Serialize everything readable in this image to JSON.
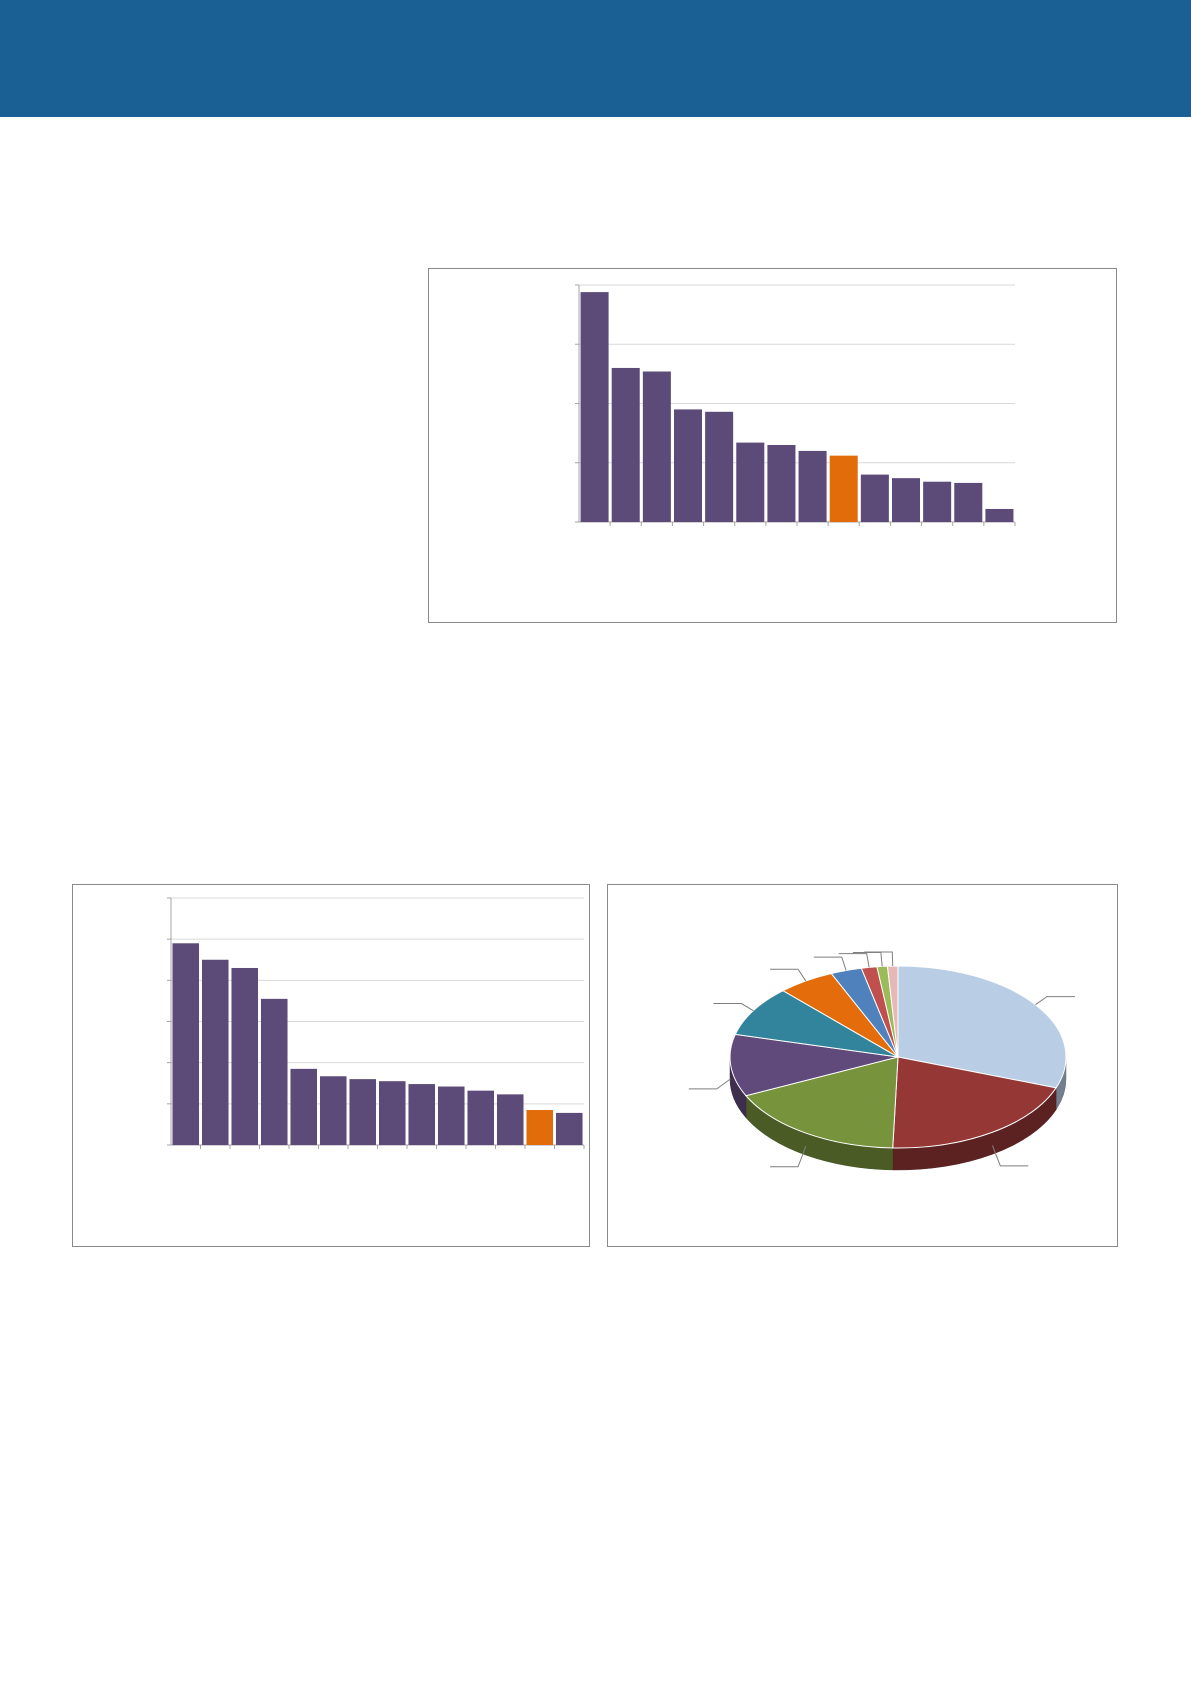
{
  "page": {
    "header_color": "#1b6094"
  },
  "charts": {
    "bar_color": "#5c4a78",
    "highlight_color": "#e36c0a",
    "grid_color": "#d9d9d9",
    "axis_color": "#a6a6a6"
  },
  "chart_data": [
    {
      "type": "bar",
      "categories": [
        "",
        "",
        "",
        "",
        "",
        "",
        "",
        "",
        "",
        "",
        "",
        "",
        "",
        ""
      ],
      "values": [
        97,
        65,
        63.5,
        47.5,
        46.5,
        33.5,
        32.5,
        30,
        28,
        20,
        18.5,
        17,
        16.5,
        5.5
      ],
      "highlight_index": 8,
      "ylim": [
        0,
        100
      ],
      "grid": true,
      "ticks": 4
    },
    {
      "type": "bar",
      "categories": [
        "",
        "",
        "",
        "",
        "",
        "",
        "",
        "",
        "",
        "",
        "",
        "",
        "",
        ""
      ],
      "values": [
        49,
        45,
        43,
        35.5,
        18.5,
        16.7,
        16,
        15.5,
        14.8,
        14.2,
        13.2,
        12.3,
        8.5,
        7.8
      ],
      "highlight_index": 12,
      "ylim": [
        0,
        60
      ],
      "grid": true,
      "ticks": 6
    },
    {
      "type": "pie",
      "style": "3d",
      "slices": [
        {
          "value": 30.5,
          "color": "#b9cde5"
        },
        {
          "value": 20.0,
          "color": "#953735"
        },
        {
          "value": 17.5,
          "color": "#77933c"
        },
        {
          "value": 11.0,
          "color": "#604a7b"
        },
        {
          "value": 9.0,
          "color": "#31849b"
        },
        {
          "value": 5.5,
          "color": "#e46c0a"
        },
        {
          "value": 3.0,
          "color": "#4f81bd"
        },
        {
          "value": 1.5,
          "color": "#c0504d"
        },
        {
          "value": 1.0,
          "color": "#9bbb59"
        },
        {
          "value": 1.0,
          "color": "#e6b9b8"
        }
      ]
    }
  ]
}
